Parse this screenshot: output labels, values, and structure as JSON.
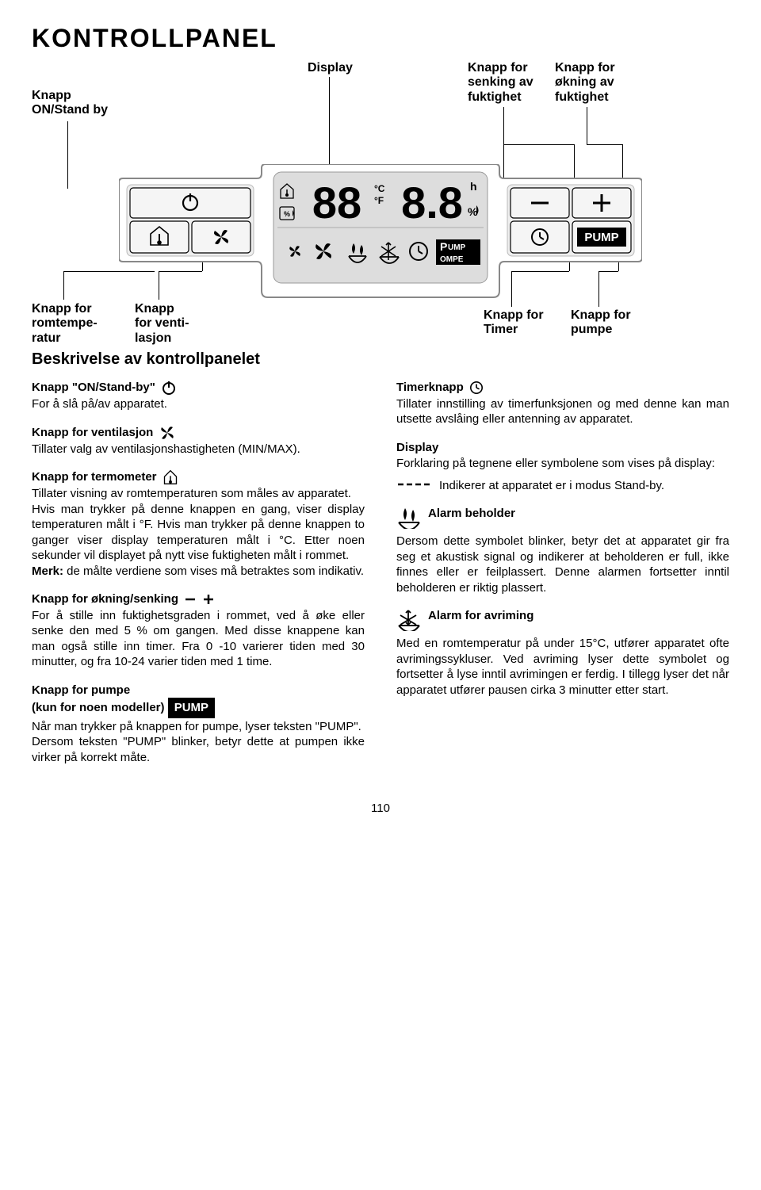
{
  "page": {
    "title": "KONTROLLPANEL",
    "number": "110"
  },
  "callouts": {
    "onStandby": "Knapp\nON/Stand by",
    "display": "Display",
    "decrease": "Knapp for\nsenking av\nfuktighet",
    "increase": "Knapp for\nøkning av\nfuktighet",
    "roomTemp": "Knapp for\nromtempe-\nratur",
    "fan": "Knapp\nfor venti-\nlasjon",
    "timer": "Knapp for\nTimer",
    "pump": "Knapp for\npumpe"
  },
  "panel": {
    "lcd_digits": "88 8.8",
    "lcd_c": "°C",
    "lcd_f": "°F",
    "lcd_h": "h",
    "lcd_pct": "%",
    "pump_small_1": "UMP",
    "pump_small_2": "OMPE",
    "pump_big": "PUMP"
  },
  "section_heading": "Beskrivelse av kontrollpanelet",
  "left": {
    "onStandby": {
      "title": "Knapp \"ON/Stand-by\"",
      "body": "For å slå på/av apparatet."
    },
    "fan": {
      "title": "Knapp for ventilasjon",
      "body": "Tillater valg av ventilasjonshastigheten (MIN/MAX)."
    },
    "thermo": {
      "title": "Knapp for termometer",
      "body": "Tillater visning av romtemperaturen som måles av apparatet.\nHvis man trykker på denne knappen en gang, viser display temperaturen målt i °F. Hvis man trykker på denne knappen to ganger viser display temperaturen målt i °C. Etter noen sekunder vil displayet på nytt vise fuktigheten målt i rommet.",
      "note_label": "Merk:",
      "note_body": " de målte verdiene som vises må betraktes som indikativ."
    },
    "updown": {
      "title": "Knapp for økning/senking",
      "body": "For å stille inn fuktighetsgraden i rommet, ved å øke eller senke den med 5 % om gangen. Med disse knappene kan man også stille inn timer. Fra 0 -10 varierer tiden med 30 minutter, og fra 10-24 varier tiden med 1 time."
    },
    "pump": {
      "title1": "Knapp for pumpe",
      "title2": "(kun for noen modeller)",
      "body": "Når man trykker på knappen for pumpe, lyser teksten \"PUMP\".\nDersom teksten \"PUMP\" blinker, betyr dette at pumpen ikke virker på korrekt måte."
    }
  },
  "right": {
    "timer": {
      "title": "Timerknapp",
      "body": "Tillater innstilling av timerfunksjonen og med denne kan man utsette avslåing eller antenning av apparatet."
    },
    "display": {
      "title": "Display",
      "body": "Forklaring på tegnene eller symbolene som vises på display:",
      "standby": "Indikerer at apparatet er i modus Stand-by."
    },
    "tankAlarm": {
      "title": "Alarm beholder",
      "body": "Dersom dette symbolet blinker, betyr det at apparatet gir fra seg et akustisk signal og indikerer at beholderen er full, ikke finnes eller er feilplassert. Denne alarmen fortsetter inntil beholderen er riktig plassert."
    },
    "defrostAlarm": {
      "title": "Alarm for avriming",
      "body": "Med en romtemperatur på under 15°C, utfører apparatet ofte avrimingssykluser. Ved avriming lyser dette symbolet og fortsetter å lyse inntil avrimingen er ferdig. I tillegg lyser det når apparatet utfører pausen cirka 3 minutter etter start."
    }
  }
}
